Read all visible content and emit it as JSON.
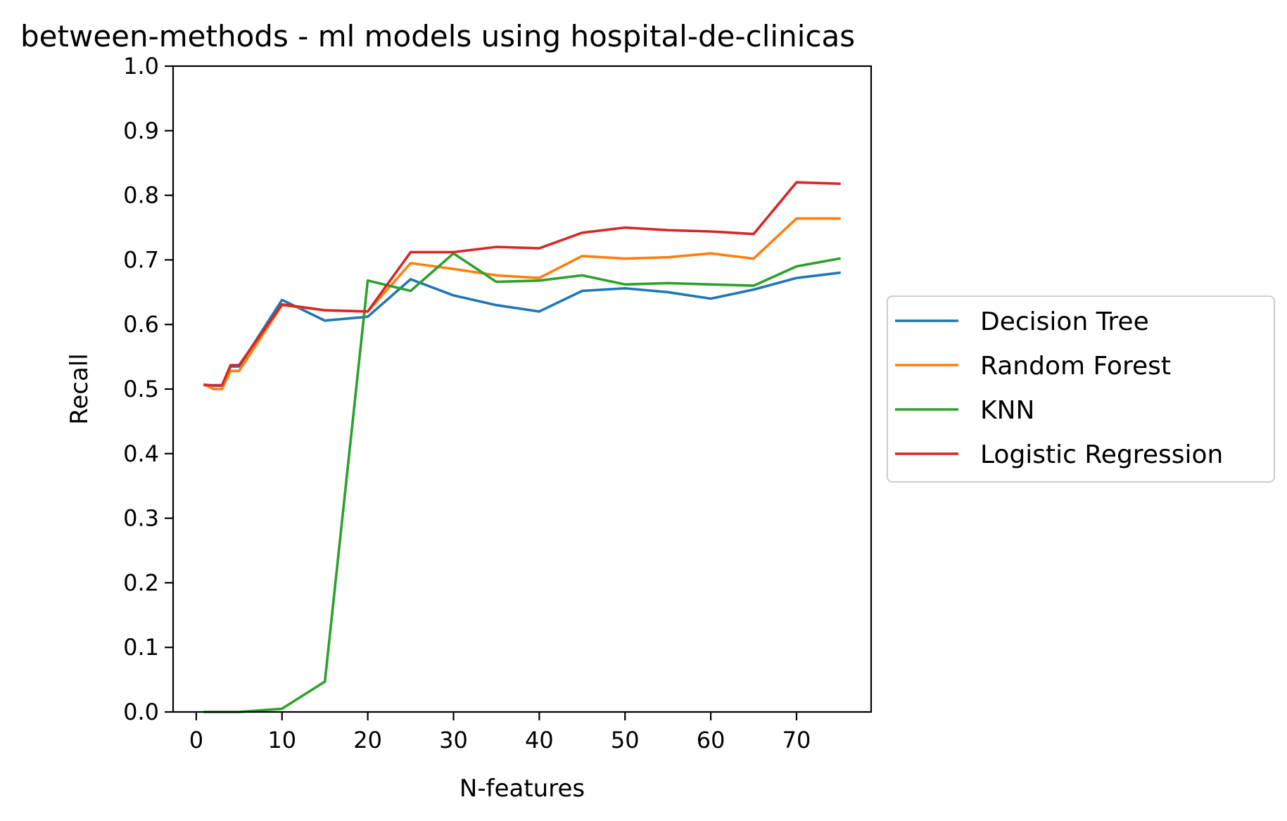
{
  "chart_data": {
    "type": "line",
    "title": "between-methods - ml models using hospital-de-clinicas",
    "xlabel": "N-features",
    "ylabel": "Recall",
    "xlim": [
      -2.7,
      78.7
    ],
    "ylim": [
      0.0,
      1.0
    ],
    "xticks": [
      0,
      10,
      20,
      30,
      40,
      50,
      60,
      70
    ],
    "yticks": [
      0.0,
      0.1,
      0.2,
      0.3,
      0.4,
      0.5,
      0.6,
      0.7,
      0.8,
      0.9,
      1.0
    ],
    "xtick_labels": [
      "0",
      "10",
      "20",
      "30",
      "40",
      "50",
      "60",
      "70"
    ],
    "ytick_labels": [
      "0.0",
      "0.1",
      "0.2",
      "0.3",
      "0.4",
      "0.5",
      "0.6",
      "0.7",
      "0.8",
      "0.9",
      "1.0"
    ],
    "grid": false,
    "legend_position": "center-right-outside",
    "x": [
      1,
      2,
      3,
      4,
      5,
      10,
      15,
      20,
      25,
      30,
      35,
      40,
      45,
      50,
      55,
      60,
      65,
      70,
      75
    ],
    "series": [
      {
        "name": "Decision Tree",
        "color": "#1f77b4",
        "values": [
          0.507,
          0.505,
          0.505,
          0.535,
          0.535,
          0.638,
          0.606,
          0.612,
          0.67,
          0.645,
          0.63,
          0.62,
          0.652,
          0.656,
          0.65,
          0.64,
          0.654,
          0.672,
          0.68
        ]
      },
      {
        "name": "Random Forest",
        "color": "#ff7f0e",
        "values": [
          0.507,
          0.5,
          0.5,
          0.528,
          0.528,
          0.63,
          0.622,
          0.62,
          0.695,
          0.686,
          0.676,
          0.672,
          0.706,
          0.702,
          0.704,
          0.71,
          0.702,
          0.764,
          0.764
        ]
      },
      {
        "name": "KNN",
        "color": "#2ca02c",
        "values": [
          0.0,
          0.0,
          0.0,
          0.0,
          0.0,
          0.005,
          0.047,
          0.668,
          0.652,
          0.71,
          0.666,
          0.668,
          0.676,
          0.662,
          0.664,
          0.662,
          0.66,
          0.69,
          0.702
        ]
      },
      {
        "name": "Logistic Regression",
        "color": "#d62728",
        "values": [
          0.506,
          0.506,
          0.506,
          0.537,
          0.537,
          0.631,
          0.622,
          0.62,
          0.712,
          0.712,
          0.72,
          0.718,
          0.742,
          0.75,
          0.746,
          0.744,
          0.74,
          0.82,
          0.818
        ]
      }
    ]
  }
}
